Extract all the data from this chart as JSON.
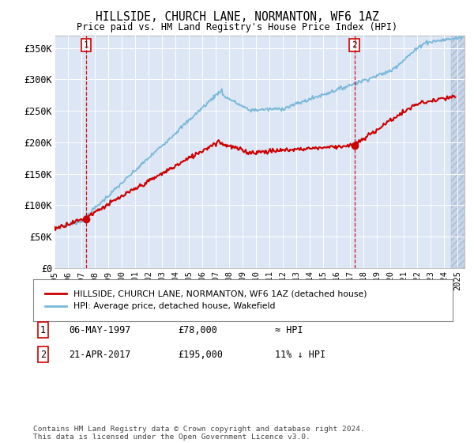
{
  "title": "HILLSIDE, CHURCH LANE, NORMANTON, WF6 1AZ",
  "subtitle": "Price paid vs. HM Land Registry's House Price Index (HPI)",
  "ylim": [
    0,
    370000
  ],
  "yticks": [
    0,
    50000,
    100000,
    150000,
    200000,
    250000,
    300000,
    350000
  ],
  "ytick_labels": [
    "£0",
    "£50K",
    "£100K",
    "£150K",
    "£200K",
    "£250K",
    "£300K",
    "£350K"
  ],
  "xmin": 1995.0,
  "xmax": 2025.5,
  "bg_color": "#dce6f5",
  "grid_color": "#ffffff",
  "hpi_color": "#7ab8d9",
  "price_color": "#cc0000",
  "sale1_x": 1997.35,
  "sale1_y": 78000,
  "sale2_x": 2017.31,
  "sale2_y": 195000,
  "legend_label1": "HILLSIDE, CHURCH LANE, NORMANTON, WF6 1AZ (detached house)",
  "legend_label2": "HPI: Average price, detached house, Wakefield",
  "note1_label": "1",
  "note1_date": "06-MAY-1997",
  "note1_price": "£78,000",
  "note1_hpi": "≈ HPI",
  "note2_label": "2",
  "note2_date": "21-APR-2017",
  "note2_price": "£195,000",
  "note2_hpi": "11% ↓ HPI",
  "footer": "Contains HM Land Registry data © Crown copyright and database right 2024.\nThis data is licensed under the Open Government Licence v3.0."
}
